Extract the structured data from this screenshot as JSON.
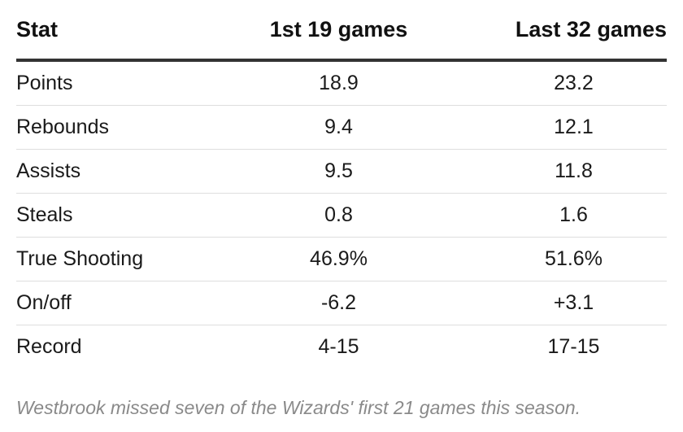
{
  "table": {
    "headers": {
      "stat": "Stat",
      "first": "1st 19 games",
      "last": "Last 32 games"
    },
    "rows": [
      {
        "stat": "Points",
        "first": "18.9",
        "last": "23.2"
      },
      {
        "stat": "Rebounds",
        "first": "9.4",
        "last": "12.1"
      },
      {
        "stat": "Assists",
        "first": "9.5",
        "last": "11.8"
      },
      {
        "stat": "Steals",
        "first": "0.8",
        "last": "1.6"
      },
      {
        "stat": "True Shooting",
        "first": "46.9%",
        "last": "51.6%"
      },
      {
        "stat": "On/off",
        "first": "-6.2",
        "last": "+3.1"
      },
      {
        "stat": "Record",
        "first": "4-15",
        "last": "17-15"
      }
    ]
  },
  "caption": "Westbrook missed seven of the Wizards' first 21 games this season."
}
